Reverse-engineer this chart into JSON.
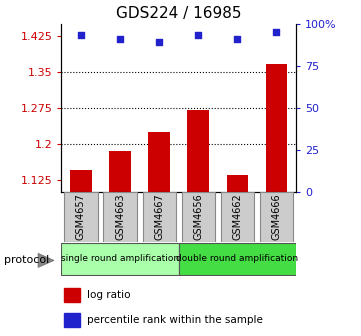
{
  "title": "GDS224 / 16985",
  "samples": [
    "GSM4657",
    "GSM4663",
    "GSM4667",
    "GSM4656",
    "GSM4662",
    "GSM4666"
  ],
  "log_ratio": [
    1.145,
    1.185,
    1.225,
    1.27,
    1.135,
    1.365
  ],
  "percentile_rank": [
    93,
    91,
    89,
    93,
    91,
    95
  ],
  "ylim_left": [
    1.1,
    1.45
  ],
  "ylim_right": [
    0,
    100
  ],
  "yticks_left": [
    1.125,
    1.2,
    1.275,
    1.35,
    1.425
  ],
  "yticks_right": [
    0,
    25,
    50,
    75,
    100
  ],
  "ytick_labels_left": [
    "1.125",
    "1.2",
    "1.275",
    "1.35",
    "1.425"
  ],
  "ytick_labels_right": [
    "0",
    "25",
    "50",
    "75",
    "100%"
  ],
  "hlines": [
    1.2,
    1.275,
    1.35
  ],
  "bar_color": "#cc0000",
  "dot_color": "#2222cc",
  "bar_bottom": 1.1,
  "protocol_groups": [
    {
      "label": "single round amplification",
      "start": 0,
      "end": 3,
      "color": "#aaffaa"
    },
    {
      "label": "double round amplification",
      "start": 3,
      "end": 6,
      "color": "#44dd44"
    }
  ],
  "protocol_label": "protocol",
  "legend_items": [
    {
      "color": "#cc0000",
      "label": "log ratio"
    },
    {
      "color": "#2222cc",
      "label": "percentile rank within the sample"
    }
  ],
  "left_color": "#cc0000",
  "right_color": "#2222cc",
  "title_fontsize": 11,
  "tick_fontsize": 8,
  "bar_width": 0.55,
  "sample_box_color": "#cccccc",
  "sample_box_edge": "#888888"
}
